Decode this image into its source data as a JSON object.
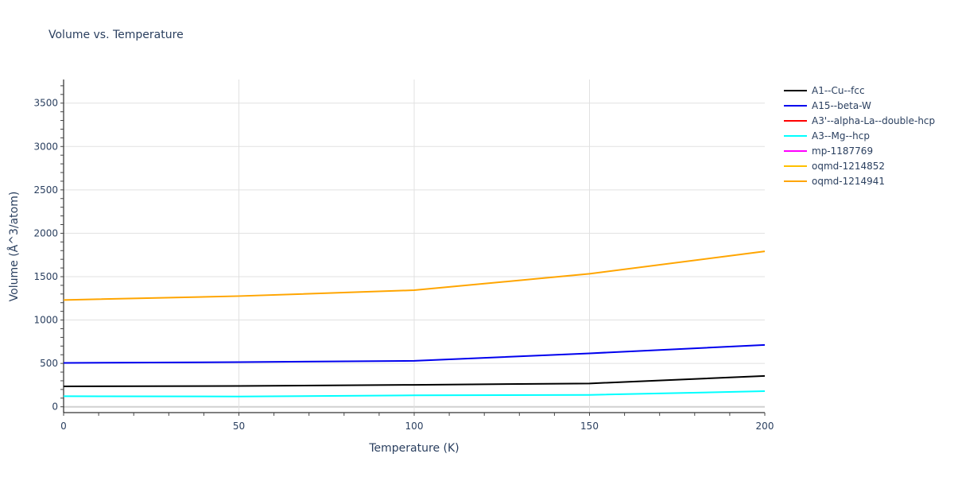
{
  "chart_data": {
    "type": "line",
    "title": "Volume vs. Temperature",
    "xlabel": "Temperature (K)",
    "ylabel": "Volume (Å^3/atom)",
    "xlim": [
      0,
      200
    ],
    "ylim": [
      -80,
      3760
    ],
    "x_ticks": [
      0,
      50,
      100,
      150,
      200
    ],
    "y_ticks": [
      0,
      500,
      1000,
      1500,
      2000,
      2500,
      3000,
      3500
    ],
    "grid": true,
    "legend_position": "right",
    "x": [
      0,
      50,
      100,
      150,
      200
    ],
    "series": [
      {
        "name": "A1--Cu--fcc",
        "color": "#000000",
        "values": [
          235,
          240,
          253,
          269,
          356
        ]
      },
      {
        "name": "A15--beta-W",
        "color": "#0000ee",
        "values": [
          506,
          515,
          530,
          616,
          713
        ]
      },
      {
        "name": "A3'--alpha-La--double-hcp",
        "color": "#ff0000",
        "values": []
      },
      {
        "name": "A3--Mg--hcp",
        "color": "#00ffff",
        "values": [
          122,
          119,
          132,
          137,
          180
        ]
      },
      {
        "name": "mp-1187769",
        "color": "#ff00ff",
        "values": []
      },
      {
        "name": "oqmd-1214852",
        "color": "#ffc000",
        "values": []
      },
      {
        "name": "oqmd-1214941",
        "color": "#ffa500",
        "values": [
          1231,
          1276,
          1344,
          1533,
          1792
        ]
      }
    ]
  }
}
